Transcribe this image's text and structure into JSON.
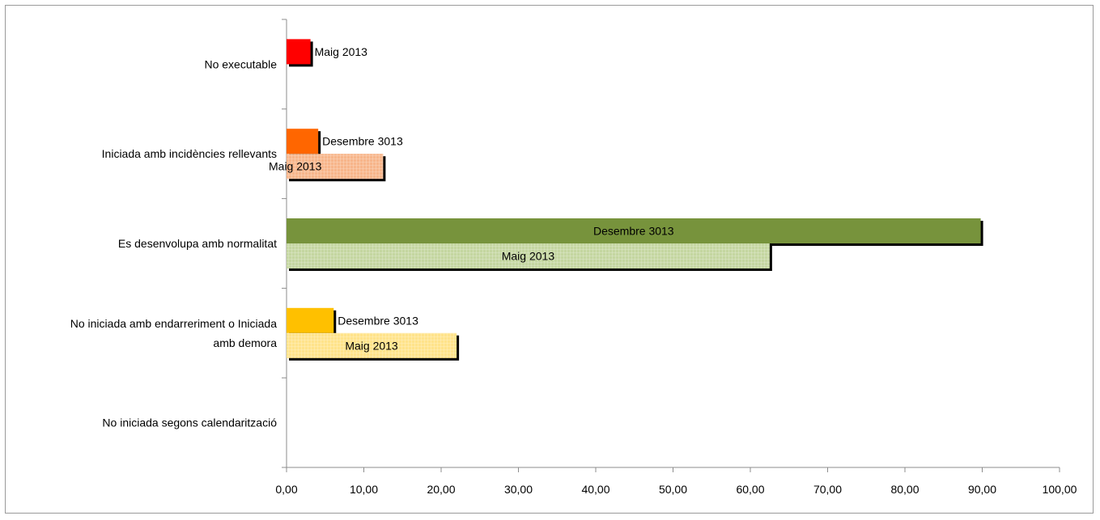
{
  "chart_data": {
    "type": "bar",
    "orientation": "horizontal",
    "categories": [
      "No executable",
      "Iniciada amb incidències rellevants",
      "Es desenvolupa amb normalitat",
      "No iniciada amb endarreriment o Iniciada amb demora",
      "No iniciada segons calendarització"
    ],
    "category_lines": [
      [
        "No executable"
      ],
      [
        "Iniciada amb incidències rellevants"
      ],
      [
        "Es desenvolupa amb normalitat"
      ],
      [
        "No iniciada amb endarreriment o Iniciada",
        "amb demora"
      ],
      [
        "No iniciada segons calendarització"
      ]
    ],
    "bars": [
      {
        "category_index": 0,
        "label": "Maig 2013",
        "value": 3.1,
        "slot": "upper",
        "label_pos": "outside",
        "color": "#ff0000",
        "pattern": false
      },
      {
        "category_index": 1,
        "label": "Desembre 3013",
        "value": 4.1,
        "slot": "upper",
        "label_pos": "outside",
        "color": "#ff6600",
        "pattern": false
      },
      {
        "category_index": 1,
        "label": "Maig 2013",
        "value": 12.5,
        "slot": "lower",
        "label_pos": "start",
        "color": "#f7b58a",
        "pattern": true
      },
      {
        "category_index": 2,
        "label": "Desembre 3013",
        "value": 89.8,
        "slot": "upper",
        "label_pos": "center",
        "color": "#77933c",
        "pattern": false
      },
      {
        "category_index": 2,
        "label": "Maig 2013",
        "value": 62.5,
        "slot": "lower",
        "label_pos": "center",
        "color": "#c4d6a0",
        "pattern": true
      },
      {
        "category_index": 3,
        "label": "Desembre 3013",
        "value": 6.1,
        "slot": "upper",
        "label_pos": "outside",
        "color": "#ffc000",
        "pattern": false
      },
      {
        "category_index": 3,
        "label": "Maig 2013",
        "value": 22.0,
        "slot": "lower",
        "label_pos": "center",
        "color": "#ffe38a",
        "pattern": true
      }
    ],
    "x_ticks": [
      "0,00",
      "10,00",
      "20,00",
      "30,00",
      "40,00",
      "50,00",
      "60,00",
      "70,00",
      "80,00",
      "90,00",
      "100,00"
    ],
    "xlim": [
      0,
      100
    ],
    "grid": false,
    "legend": "none",
    "title": "",
    "xlabel": "",
    "ylabel": ""
  }
}
